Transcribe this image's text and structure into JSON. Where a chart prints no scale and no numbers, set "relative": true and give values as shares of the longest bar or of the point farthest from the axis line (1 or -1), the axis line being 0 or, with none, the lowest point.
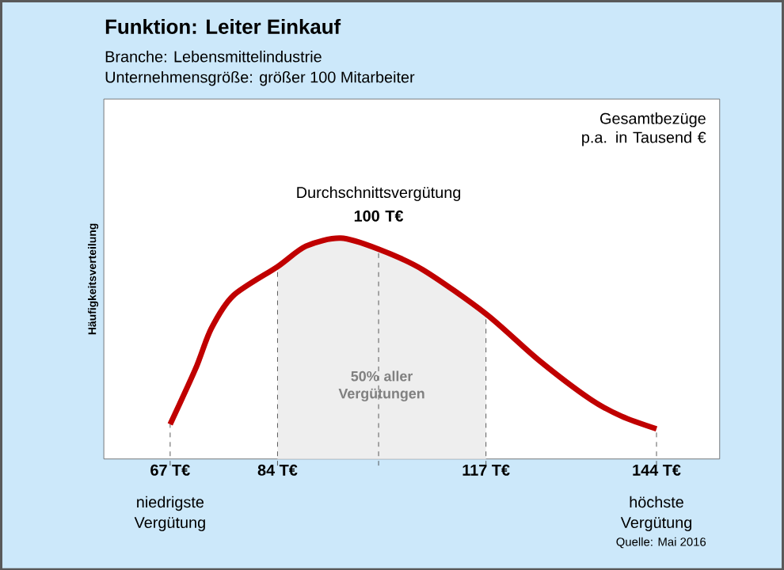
{
  "chart_data": {
    "type": "line",
    "title": "Funktion: Leiter Einkauf",
    "subtitle": "Branche: Lebensmittelindustrie",
    "ylabel": "Häufigkeitsverteilung",
    "relative": true,
    "color": "#c00000",
    "x": [
      67,
      71,
      73.5,
      77,
      84,
      88.5,
      94,
      100,
      107,
      117,
      125.25,
      133.5,
      138.5,
      144
    ],
    "values": [
      0.157,
      0.407,
      0.59,
      0.74,
      0.871,
      0.964,
      1.0,
      0.95,
      0.857,
      0.657,
      0.45,
      0.271,
      0.193,
      0.136
    ],
    "xlim": [
      56.5,
      154
    ],
    "xticks": [
      {
        "value": 67,
        "label": "67 T€"
      },
      {
        "value": 84,
        "label": "84 T€"
      },
      {
        "value": 117,
        "label": "117 T€"
      },
      {
        "value": 144,
        "label": "144 T€"
      }
    ],
    "ref_lines": [
      {
        "axis": "x",
        "value": 67
      },
      {
        "axis": "x",
        "value": 84
      },
      {
        "axis": "x",
        "value": 100,
        "label": "Durchschnittsvergütung **100 T€**"
      },
      {
        "axis": "x",
        "value": 117
      },
      {
        "axis": "x",
        "value": 144
      }
    ],
    "bands": [
      {
        "axis": "x",
        "from": 84,
        "to": 117,
        "label": "50% aller Vergütungen",
        "color": "#eeeeee"
      }
    ],
    "annotations": [
      "Unternehmensgröße: größer 100 Mitarbeiter",
      "Gesamtbezüge p.a. in Tausend €",
      "Quelle: Mai 2016",
      "niedrigste Vergütung",
      "höchste Vergütung"
    ]
  }
}
